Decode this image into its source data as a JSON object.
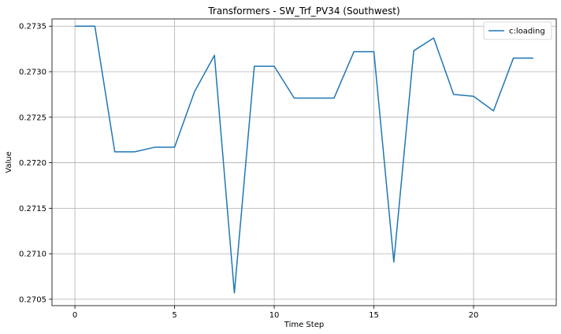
{
  "chart_data": {
    "type": "line",
    "title": "Transformers - SW_Trf_PV34 (Southwest)",
    "xlabel": "Time Step",
    "ylabel": "Value",
    "xlim": [
      -1.15,
      24.15
    ],
    "ylim": [
      0.27043,
      0.27358
    ],
    "x_ticks": [
      0,
      5,
      10,
      15,
      20
    ],
    "y_ticks": [
      0.2705,
      0.271,
      0.2715,
      0.272,
      0.2725,
      0.273,
      0.2735
    ],
    "y_tick_labels": [
      "0.2705",
      "0.2710",
      "0.2715",
      "0.2720",
      "0.2725",
      "0.2730",
      "0.2735"
    ],
    "grid": true,
    "legend_position": "top-right",
    "x": [
      0,
      1,
      2,
      3,
      4,
      5,
      6,
      7,
      8,
      9,
      10,
      11,
      12,
      13,
      14,
      15,
      16,
      17,
      18,
      19,
      20,
      21,
      22,
      23
    ],
    "series": [
      {
        "name": "c:loading",
        "color": "#1f77b4",
        "values": [
          0.2735,
          0.2735,
          0.27212,
          0.27212,
          0.27217,
          0.27217,
          0.27278,
          0.27318,
          0.27057,
          0.27306,
          0.27306,
          0.27271,
          0.27271,
          0.27271,
          0.27322,
          0.27322,
          0.27091,
          0.27323,
          0.27337,
          0.27275,
          0.27273,
          0.27257,
          0.27315,
          0.27315
        ]
      }
    ]
  }
}
